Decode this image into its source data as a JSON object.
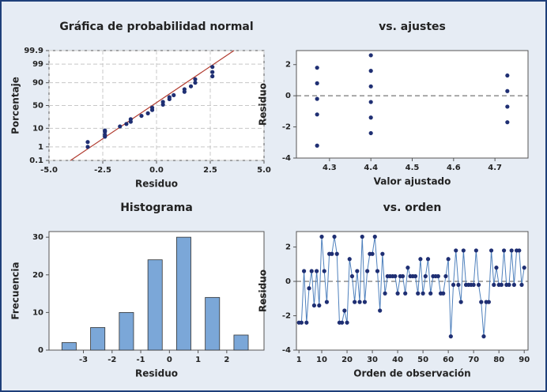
{
  "chart_data": [
    {
      "type": "scatter",
      "title": "Gráfica de probabilidad normal",
      "x_label": "Residuo",
      "y_label": "Porcentaje",
      "yscale": "probability",
      "grid": true,
      "color": "#1f2f73",
      "x": [
        -3.2,
        -3.2,
        -2.4,
        -2.4,
        -2.4,
        -2.4,
        -1.7,
        -1.4,
        -1.2,
        -1.2,
        -0.7,
        -0.4,
        -0.2,
        -0.2,
        0.3,
        0.3,
        0.6,
        0.6,
        0.8,
        1.3,
        1.3,
        1.6,
        1.8,
        1.8,
        2.6,
        2.6,
        2.6
      ],
      "values": [
        1,
        2,
        4,
        5,
        7,
        8,
        12,
        15,
        18,
        22,
        28,
        33,
        40,
        45,
        52,
        58,
        64,
        68,
        72,
        78,
        82,
        86,
        90,
        93,
        95,
        97,
        98.5
      ],
      "fit_line": {
        "x": [
          -4.0,
          3.6
        ],
        "y": [
          0.1,
          99.9
        ],
        "color": "#b03a2e"
      },
      "xlim": [
        -5,
        5
      ],
      "xticks": [
        {
          "value": -5,
          "label": "-5.0"
        },
        -2.5,
        {
          "value": 0,
          "label": "0.0"
        },
        2.5,
        {
          "value": 5,
          "label": "5.0"
        }
      ],
      "ylim": [
        0.1,
        99.9
      ],
      "yticks": [
        0.1,
        1,
        10,
        50,
        90,
        99,
        99.9
      ]
    },
    {
      "type": "scatter",
      "title": "vs. ajustes",
      "x_label": "Valor ajustado",
      "y_label": "Residuo",
      "grid": false,
      "color": "#1f2f73",
      "x": [
        4.27,
        4.27,
        4.27,
        4.27,
        4.27,
        4.4,
        4.4,
        4.4,
        4.4,
        4.4,
        4.4,
        4.73,
        4.73,
        4.73,
        4.73
      ],
      "values": [
        1.8,
        0.8,
        -0.2,
        -1.2,
        -3.2,
        2.6,
        1.6,
        0.6,
        -0.4,
        -1.4,
        -2.4,
        1.3,
        0.3,
        -0.7,
        -1.7
      ],
      "reference_line": 0,
      "xlim": [
        4.22,
        4.78
      ],
      "xticks": [
        4.3,
        4.4,
        4.5,
        4.6,
        4.7
      ],
      "ylim": [
        -4,
        2.9
      ],
      "yticks": [
        -4,
        -2,
        0,
        2
      ]
    },
    {
      "type": "histogram",
      "title": "Histograma",
      "x_label": "Residuo",
      "y_label": "Frecuencia",
      "grid": false,
      "color": "#7ba7d8",
      "bins": [
        -4,
        -3,
        -2,
        -1,
        0,
        1,
        2,
        3
      ],
      "values": [
        2,
        6,
        10,
        24,
        30,
        14,
        4
      ],
      "xlim": [
        -4.2,
        3.3
      ],
      "xticks": [
        -3,
        -2,
        -1,
        0,
        1,
        2
      ],
      "ylim": [
        0,
        31.5
      ],
      "yticks": [
        0,
        10,
        20,
        30
      ]
    },
    {
      "type": "line",
      "title": "vs. orden",
      "x_label": "Orden de observación",
      "y_label": "Residuo",
      "grid": false,
      "color": "#4f81bd",
      "marker_color": "#1f2f73",
      "x": [
        1,
        2,
        3,
        4,
        5,
        6,
        7,
        8,
        9,
        10,
        11,
        12,
        13,
        14,
        15,
        16,
        17,
        18,
        19,
        20,
        21,
        22,
        23,
        24,
        25,
        26,
        27,
        28,
        29,
        30,
        31,
        32,
        33,
        34,
        35,
        36,
        37,
        38,
        39,
        40,
        41,
        42,
        43,
        44,
        45,
        46,
        47,
        48,
        49,
        50,
        51,
        52,
        53,
        54,
        55,
        56,
        57,
        58,
        59,
        60,
        61,
        62,
        63,
        64,
        65,
        66,
        67,
        68,
        69,
        70,
        71,
        72,
        73,
        74,
        75,
        76,
        77,
        78,
        79,
        80,
        81,
        82,
        83,
        84,
        85,
        86,
        87,
        88,
        89,
        90
      ],
      "values": [
        -2.4,
        -2.4,
        0.6,
        -2.4,
        -0.4,
        0.6,
        -1.4,
        0.6,
        -1.4,
        2.6,
        0.6,
        -1.2,
        1.6,
        1.6,
        2.6,
        1.6,
        -2.4,
        -2.4,
        -1.7,
        -2.4,
        1.3,
        0.3,
        -1.2,
        0.6,
        -1.2,
        2.6,
        -1.2,
        0.6,
        1.6,
        1.6,
        2.6,
        0.6,
        -1.7,
        1.6,
        -0.7,
        0.3,
        0.3,
        0.3,
        0.3,
        -0.7,
        0.3,
        0.3,
        -0.7,
        0.8,
        0.3,
        0.3,
        0.3,
        -0.7,
        1.3,
        -0.7,
        0.3,
        1.3,
        -0.7,
        0.3,
        0.3,
        0.3,
        -0.7,
        -0.7,
        0.3,
        1.3,
        -3.2,
        -0.2,
        1.8,
        -0.2,
        -1.2,
        1.8,
        -0.2,
        -0.2,
        -0.2,
        -0.2,
        1.8,
        -0.2,
        -1.2,
        -3.2,
        -1.2,
        -1.2,
        1.8,
        -0.2,
        0.8,
        -0.2,
        -0.2,
        1.8,
        -0.2,
        -0.2,
        1.8,
        -0.2,
        1.8,
        1.8,
        -0.2,
        0.8
      ],
      "reference_line": 0,
      "xlim": [
        0,
        91.5
      ],
      "xticks": [
        1,
        10,
        20,
        30,
        40,
        50,
        60,
        70,
        80,
        90
      ],
      "ylim": [
        -4,
        2.9
      ],
      "yticks": [
        -4,
        -2,
        0,
        2
      ]
    }
  ]
}
